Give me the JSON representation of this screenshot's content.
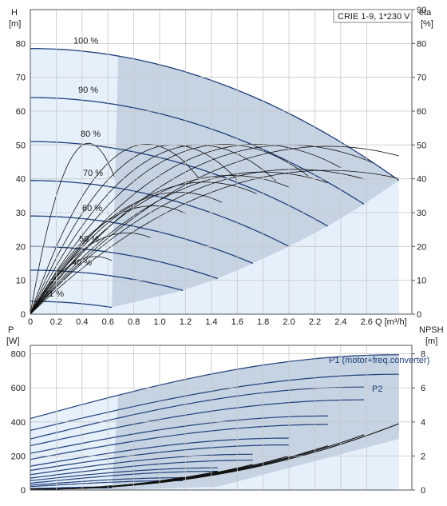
{
  "chart_data": [
    {
      "type": "line",
      "legend_box": "CRIE 1-9, 1*230 V",
      "y_left_label": "H\n[m]",
      "y_right_label": "eta\n[%]",
      "x_label": "Q [m³/h]",
      "xlim": [
        0,
        2.95
      ],
      "ylim": [
        0,
        90
      ],
      "y2lim": [
        0,
        90
      ],
      "x_ticks": [
        "0",
        "0.2",
        "0.4",
        "0.6",
        "0.8",
        "1.0",
        "1.2",
        "1.4",
        "1.6",
        "1.8",
        "2.0",
        "2.2",
        "2.4",
        "2.6"
      ],
      "y_ticks": [
        "0",
        "10",
        "20",
        "30",
        "40",
        "50",
        "60",
        "70",
        "80"
      ],
      "y2_ticks": [
        "0",
        "10",
        "20",
        "30",
        "40",
        "50",
        "60",
        "70",
        "80",
        "90"
      ],
      "grid": true,
      "colors": {
        "shade_dark": "#c6d3e3",
        "shade_light": "#e6f0fb",
        "hq": "#1f3f7a",
        "eta": "#111111"
      },
      "series": [
        {
          "name": "100 %",
          "h0": 78.5,
          "q_end": 2.85,
          "h_end": 39.5
        },
        {
          "name": "90 %",
          "h0": 64.0,
          "q_end": 2.58,
          "h_end": 32.5
        },
        {
          "name": "80 %",
          "h0": 51.0,
          "q_end": 2.3,
          "h_end": 26.0
        },
        {
          "name": "70 %",
          "h0": 39.5,
          "q_end": 2.0,
          "h_end": 20.0
        },
        {
          "name": "60 %",
          "h0": 29.0,
          "q_end": 1.72,
          "h_end": 15.0
        },
        {
          "name": "50 %",
          "h0": 20.0,
          "q_end": 1.45,
          "h_end": 10.5
        },
        {
          "name": "40 %",
          "h0": 13.0,
          "q_end": 1.18,
          "h_end": 7.0
        },
        {
          "name": "21 %",
          "h0": 3.8,
          "q_end": 0.63,
          "h_end": 2.0
        }
      ],
      "efficiency_peaks": [
        {
          "q_peak": 0.45,
          "eta_peak": 50.5,
          "q_end": 0.65
        },
        {
          "q_peak": 0.9,
          "eta_peak": 50.2,
          "q_end": 1.3
        },
        {
          "q_peak": 1.1,
          "eta_peak": 50.0,
          "q_end": 1.6
        },
        {
          "q_peak": 1.3,
          "eta_peak": 50.0,
          "q_end": 1.9
        },
        {
          "q_peak": 1.5,
          "eta_peak": 50.2,
          "q_end": 2.15
        },
        {
          "q_peak": 1.75,
          "eta_peak": 50.2,
          "q_end": 2.4
        },
        {
          "q_peak": 2.0,
          "eta_peak": 50.0,
          "q_end": 2.65
        },
        {
          "q_peak": 2.3,
          "eta_peak": 49.6,
          "q_end": 2.85
        },
        {
          "q_peak": 0.5,
          "eta_peak": 17.0,
          "q_end": 0.63
        },
        {
          "q_peak": 0.75,
          "eta_peak": 24.0,
          "q_end": 0.93
        },
        {
          "q_peak": 0.95,
          "eta_peak": 32.0,
          "q_end": 1.2
        },
        {
          "q_peak": 1.15,
          "eta_peak": 36.0,
          "q_end": 1.48
        },
        {
          "q_peak": 1.35,
          "eta_peak": 39.0,
          "q_end": 1.75
        },
        {
          "q_peak": 1.55,
          "eta_peak": 41.0,
          "q_end": 2.0
        },
        {
          "q_peak": 1.8,
          "eta_peak": 42.0,
          "q_end": 2.3
        },
        {
          "q_peak": 2.05,
          "eta_peak": 42.8,
          "q_end": 2.58
        },
        {
          "q_peak": 2.3,
          "eta_peak": 42.5,
          "q_end": 2.85
        }
      ]
    },
    {
      "type": "line",
      "y_left_label": "P\n[W]",
      "y_right_label": "NPSH\n[m]",
      "xlim": [
        0,
        2.95
      ],
      "ylim": [
        0,
        850
      ],
      "y2lim": [
        0,
        8.5
      ],
      "y_ticks": [
        "0",
        "200",
        "400",
        "600",
        "800"
      ],
      "y2_ticks": [
        "0",
        "2",
        "4",
        "6",
        "8"
      ],
      "grid": true,
      "label_p1": "P1 (motor+freq.converter)",
      "label_p2": "P2",
      "power_curves": [
        {
          "p0": 420,
          "p_end": 795,
          "q_end": 2.85
        },
        {
          "p0": 350,
          "p_end": 680,
          "q_end": 2.85
        },
        {
          "p0": 300,
          "p_end": 605,
          "q_end": 2.58
        },
        {
          "p0": 260,
          "p_end": 530,
          "q_end": 2.58
        },
        {
          "p0": 215,
          "p_end": 435,
          "q_end": 2.3
        },
        {
          "p0": 180,
          "p_end": 385,
          "q_end": 2.3
        },
        {
          "p0": 140,
          "p_end": 305,
          "q_end": 2.0
        },
        {
          "p0": 115,
          "p_end": 265,
          "q_end": 2.0
        },
        {
          "p0": 90,
          "p_end": 210,
          "q_end": 1.72
        },
        {
          "p0": 70,
          "p_end": 175,
          "q_end": 1.72
        },
        {
          "p0": 55,
          "p_end": 130,
          "q_end": 1.45
        },
        {
          "p0": 40,
          "p_end": 110,
          "q_end": 1.45
        },
        {
          "p0": 28,
          "p_end": 72,
          "q_end": 1.18
        },
        {
          "p0": 20,
          "p_end": 55,
          "q_end": 1.18
        },
        {
          "p0": 8,
          "p_end": 18,
          "q_end": 0.63
        },
        {
          "p0": 5,
          "p_end": 12,
          "q_end": 0.63
        }
      ],
      "npsh_curves": [
        {
          "q_end": 2.85,
          "npsh_end": 3.85
        },
        {
          "q_end": 2.58,
          "npsh_end": 3.2
        },
        {
          "q_end": 2.3,
          "npsh_end": 2.55
        },
        {
          "q_end": 2.0,
          "npsh_end": 1.95
        },
        {
          "q_end": 1.72,
          "npsh_end": 1.45
        },
        {
          "q_end": 1.45,
          "npsh_end": 1.05
        },
        {
          "q_end": 1.18,
          "npsh_end": 0.7
        },
        {
          "q_end": 0.63,
          "npsh_end": 0.2
        }
      ]
    }
  ]
}
